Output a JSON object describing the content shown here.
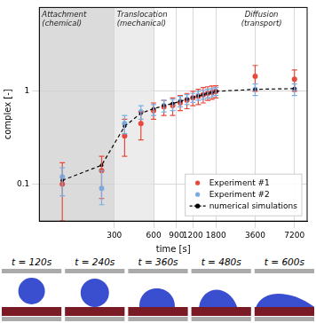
{
  "chart_data": {
    "type": "scatter",
    "x_label": "time [s]",
    "y_label": "complex [-]",
    "x": [
      120,
      240,
      360,
      480,
      600,
      720,
      840,
      960,
      1080,
      1200,
      1320,
      1440,
      1560,
      1680,
      1800,
      3600,
      7200
    ],
    "series": [
      {
        "name": "Experiment #1",
        "color": "#e8493b",
        "marker": "circle",
        "values": [
          0.1,
          0.14,
          0.33,
          0.45,
          0.62,
          0.68,
          0.7,
          0.75,
          0.8,
          0.85,
          0.88,
          0.92,
          0.95,
          0.97,
          1.0,
          1.45,
          1.35
        ],
        "lower": [
          0.04,
          0.07,
          0.2,
          0.3,
          0.5,
          0.55,
          0.55,
          0.62,
          0.65,
          0.7,
          0.72,
          0.75,
          0.8,
          0.82,
          0.85,
          1.0,
          1.0
        ],
        "upper": [
          0.17,
          0.2,
          0.5,
          0.6,
          0.75,
          0.8,
          0.85,
          0.9,
          0.95,
          1.0,
          1.05,
          1.1,
          1.12,
          1.14,
          1.15,
          1.9,
          1.7
        ]
      },
      {
        "name": "Experiment #2",
        "color": "#78aee3",
        "marker": "circle",
        "values": [
          0.12,
          0.09,
          0.45,
          0.6,
          0.63,
          0.7,
          0.72,
          0.78,
          0.82,
          0.85,
          0.9,
          0.92,
          0.95,
          0.97,
          1.0,
          1.05,
          1.05
        ],
        "lower": [
          0.075,
          0.06,
          0.35,
          0.5,
          0.55,
          0.6,
          0.62,
          0.68,
          0.72,
          0.76,
          0.8,
          0.82,
          0.85,
          0.87,
          0.9,
          0.9,
          0.9
        ],
        "upper": [
          0.15,
          0.14,
          0.55,
          0.7,
          0.72,
          0.8,
          0.82,
          0.88,
          0.92,
          0.95,
          1.0,
          1.02,
          1.05,
          1.07,
          1.1,
          1.2,
          1.2
        ]
      },
      {
        "name": "numerical simulations",
        "color": "#000000",
        "type": "line",
        "line_style": "dashed",
        "marker": "circle",
        "values": [
          0.11,
          0.16,
          0.42,
          0.58,
          0.65,
          0.7,
          0.74,
          0.78,
          0.82,
          0.86,
          0.89,
          0.92,
          0.95,
          0.97,
          1.0,
          1.05,
          1.07
        ]
      }
    ],
    "xlim": [
      80,
      9000
    ],
    "ylim": [
      0.04,
      8
    ],
    "xticks": [
      300,
      600,
      900,
      1200,
      1800,
      3600,
      7200
    ],
    "yticks": [
      0.1,
      1
    ],
    "log": true,
    "grid": true,
    "legend": "lower right",
    "phases": [
      {
        "lines": [
          "Attachment",
          "(chemical)"
        ],
        "start": 80,
        "end": 300,
        "color": "#cfcfcf"
      },
      {
        "lines": [
          "Translocation",
          "(mechanical)"
        ],
        "start": 300,
        "end": 600,
        "color": "#e6e6e6"
      },
      {
        "lines": [
          "Diffusion",
          "(transport)"
        ],
        "start": 1800,
        "end": 9000
      }
    ]
  },
  "panels": [
    "t = 120s",
    "t = 240s",
    "t = 360s",
    "t = 480s",
    "t = 600s"
  ]
}
